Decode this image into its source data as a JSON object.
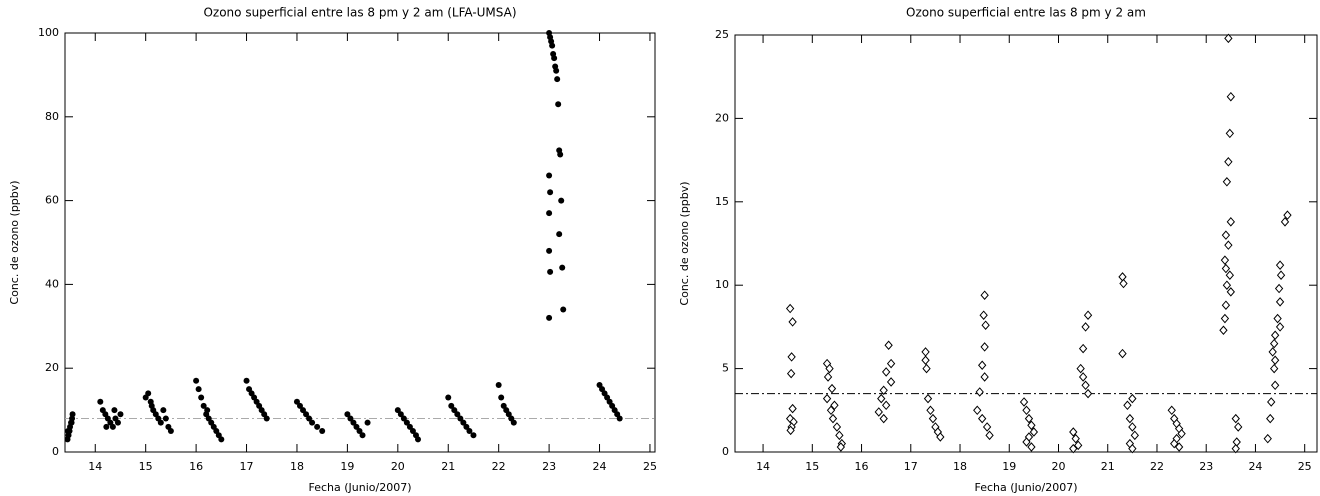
{
  "chart_data": [
    {
      "type": "scatter",
      "title": "Ozono superficial entre las 8 pm y 2 am (LFA-UMSA)",
      "xlabel": "Fecha (Junio/2007)",
      "ylabel": "Conc. de ozono (ppbv)",
      "marker": "filled-circle",
      "color": "#000000",
      "reference_line": 8,
      "reference_color": "#aaaaaa",
      "xlim": [
        13.4,
        25.1
      ],
      "ylim": [
        0,
        100
      ],
      "xticks": [
        14,
        15,
        16,
        17,
        18,
        19,
        20,
        21,
        22,
        23,
        24,
        25
      ],
      "yticks": [
        0,
        20,
        40,
        60,
        80,
        100
      ],
      "x": [
        13.45,
        13.47,
        13.49,
        13.5,
        13.52,
        13.54,
        13.55,
        13.46,
        13.53,
        14.1,
        14.15,
        14.2,
        14.25,
        14.3,
        14.35,
        14.4,
        14.45,
        14.5,
        14.22,
        14.38,
        15.0,
        15.05,
        15.1,
        15.15,
        15.2,
        15.25,
        15.3,
        15.35,
        15.4,
        15.45,
        15.5,
        15.12,
        16.0,
        16.05,
        16.1,
        16.15,
        16.2,
        16.25,
        16.3,
        16.35,
        16.4,
        16.45,
        16.5,
        16.22,
        17.0,
        17.05,
        17.1,
        17.15,
        17.2,
        17.25,
        17.3,
        17.35,
        17.4,
        18.0,
        18.06,
        18.12,
        18.18,
        18.24,
        18.3,
        18.4,
        18.5,
        19.0,
        19.06,
        19.12,
        19.18,
        19.24,
        19.3,
        19.4,
        20.0,
        20.06,
        20.12,
        20.18,
        20.24,
        20.3,
        20.36,
        20.4,
        21.0,
        21.06,
        21.12,
        21.18,
        21.24,
        21.3,
        21.36,
        21.42,
        21.5,
        22.0,
        22.05,
        22.1,
        22.15,
        22.2,
        22.25,
        22.3,
        23.0,
        23.02,
        23.04,
        23.06,
        23.08,
        23.1,
        23.12,
        23.14,
        23.16,
        23.18,
        23.2,
        23.22,
        23.0,
        23.02,
        23.24,
        23.0,
        23.2,
        23.0,
        23.26,
        23.02,
        23.28,
        23.0,
        24.0,
        24.05,
        24.1,
        24.15,
        24.2,
        24.25,
        24.3,
        24.35,
        24.4
      ],
      "values": [
        3,
        4,
        5,
        6,
        7,
        8,
        9,
        5,
        7,
        12,
        10,
        9,
        8,
        7,
        6,
        8,
        7,
        9,
        6,
        10,
        13,
        14,
        12,
        10,
        9,
        8,
        7,
        10,
        8,
        6,
        5,
        11,
        17,
        15,
        13,
        11,
        9,
        8,
        7,
        6,
        5,
        4,
        3,
        10,
        17,
        15,
        14,
        13,
        12,
        11,
        10,
        9,
        8,
        12,
        11,
        10,
        9,
        8,
        7,
        6,
        5,
        9,
        8,
        7,
        6,
        5,
        4,
        7,
        10,
        9,
        8,
        7,
        6,
        5,
        4,
        3,
        13,
        11,
        10,
        9,
        8,
        7,
        6,
        5,
        4,
        16,
        13,
        11,
        10,
        9,
        8,
        7,
        100,
        99,
        98,
        97,
        95,
        94,
        92,
        91,
        89,
        83,
        72,
        71,
        66,
        62,
        60,
        57,
        52,
        48,
        44,
        43,
        34,
        32,
        16,
        15,
        14,
        13,
        12,
        11,
        10,
        9,
        8
      ]
    },
    {
      "type": "scatter",
      "title": "Ozono superficial entre las 8 pm y 2 am",
      "xlabel": "Fecha (Junio/2007)",
      "ylabel": "Conc. de ozono (ppbv)",
      "marker": "open-diamond",
      "color": "#000000",
      "reference_line": 3.5,
      "reference_color": "#000000",
      "xlim": [
        13.43,
        25.25
      ],
      "ylim": [
        0,
        25
      ],
      "xticks": [
        14,
        15,
        16,
        17,
        18,
        19,
        20,
        21,
        22,
        23,
        24,
        25
      ],
      "yticks": [
        0,
        5,
        10,
        15,
        20,
        25
      ],
      "x": [
        14.55,
        14.6,
        14.58,
        14.57,
        14.6,
        14.55,
        14.62,
        14.58,
        14.56,
        15.3,
        15.35,
        15.32,
        15.4,
        15.3,
        15.45,
        15.38,
        15.42,
        15.5,
        15.55,
        15.6,
        15.58,
        16.55,
        16.6,
        16.5,
        16.6,
        16.45,
        16.4,
        16.5,
        16.35,
        16.45,
        17.3,
        17.3,
        17.32,
        17.35,
        17.4,
        17.45,
        17.5,
        17.55,
        17.6,
        18.5,
        18.48,
        18.52,
        18.5,
        18.45,
        18.5,
        18.4,
        18.35,
        18.45,
        18.55,
        18.6,
        19.3,
        19.35,
        19.4,
        19.45,
        19.5,
        19.4,
        19.35,
        19.45,
        20.6,
        20.55,
        20.5,
        20.45,
        20.5,
        20.55,
        20.6,
        20.3,
        20.35,
        20.4,
        20.3,
        21.3,
        21.32,
        21.3,
        21.5,
        21.4,
        21.45,
        21.5,
        21.55,
        21.45,
        21.5,
        22.3,
        22.35,
        22.4,
        22.45,
        22.5,
        22.4,
        22.35,
        22.45,
        23.45,
        23.5,
        23.48,
        23.45,
        23.42,
        23.5,
        23.4,
        23.45,
        23.38,
        23.4,
        23.48,
        23.42,
        23.5,
        23.4,
        23.38,
        23.35,
        23.6,
        23.65,
        23.62,
        23.6,
        24.65,
        24.6,
        24.5,
        24.52,
        24.48,
        24.5,
        24.45,
        24.5,
        24.4,
        24.38,
        24.35,
        24.4,
        24.38,
        24.4,
        24.32,
        24.3,
        24.25
      ],
      "values": [
        8.6,
        7.8,
        5.7,
        4.7,
        2.6,
        2,
        1.8,
        1.5,
        1.3,
        5.3,
        5,
        4.5,
        3.8,
        3.2,
        2.8,
        2.5,
        2,
        1.5,
        1,
        0.5,
        0.3,
        6.4,
        5.3,
        4.8,
        4.2,
        3.7,
        3.2,
        2.8,
        2.4,
        2,
        6,
        5.5,
        5,
        3.2,
        2.5,
        2,
        1.5,
        1.2,
        0.9,
        9.4,
        8.2,
        7.6,
        6.3,
        5.2,
        4.5,
        3.6,
        2.5,
        2,
        1.5,
        1,
        3,
        2.5,
        2,
        1.6,
        1.2,
        0.9,
        0.6,
        0.3,
        8.2,
        7.5,
        6.2,
        5,
        4.5,
        4,
        3.5,
        1.2,
        0.8,
        0.4,
        0.2,
        10.5,
        10.1,
        5.9,
        3.2,
        2.8,
        2,
        1.5,
        1,
        0.5,
        0.2,
        2.5,
        2,
        1.7,
        1.4,
        1.1,
        0.8,
        0.5,
        0.3,
        24.8,
        21.3,
        19.1,
        17.4,
        16.2,
        13.8,
        13,
        12.4,
        11.5,
        11,
        10.6,
        10,
        9.6,
        8.8,
        8,
        7.3,
        2,
        1.5,
        0.6,
        0.2,
        14.2,
        13.8,
        11.2,
        10.6,
        9.8,
        9,
        8,
        7.5,
        7,
        6.5,
        6,
        5.5,
        5,
        4,
        3,
        2,
        0.8
      ]
    }
  ]
}
